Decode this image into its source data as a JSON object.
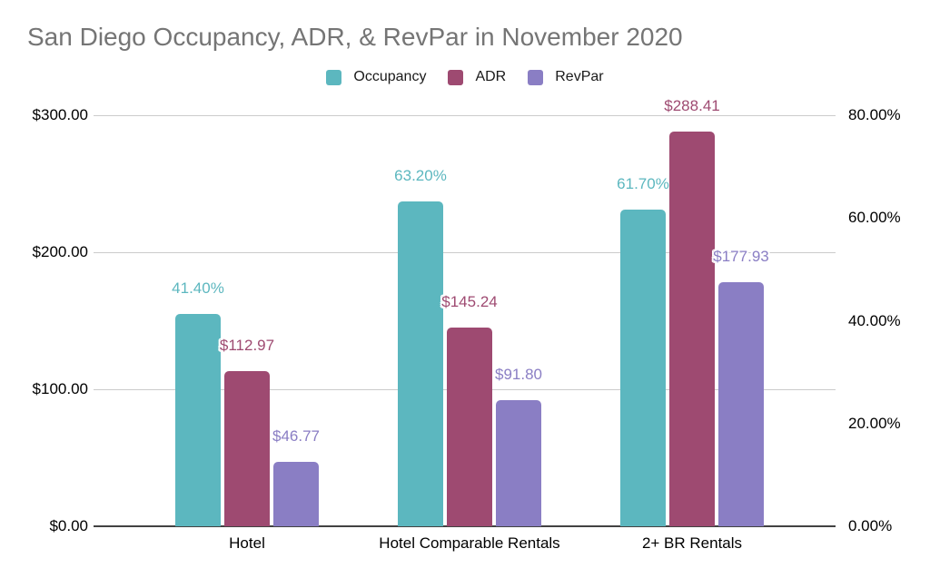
{
  "title": "San Diego Occupancy, ADR, & RevPar in November 2020",
  "colors": {
    "occupancy": "#5CB7BF",
    "adr": "#9E4A71",
    "revpar": "#8A7EC4",
    "title_text": "#757575",
    "axis_text": "#000000",
    "gridline": "#CBCBCB",
    "baseline": "#424242"
  },
  "legend": {
    "position": "top",
    "items": [
      {
        "label": "Occupancy",
        "color": "#5CB7BF"
      },
      {
        "label": "ADR",
        "color": "#9E4A71"
      },
      {
        "label": "RevPar",
        "color": "#8A7EC4"
      }
    ]
  },
  "chart_data": {
    "type": "bar",
    "title": "San Diego Occupancy, ADR, & RevPar in November 2020",
    "categories": [
      "Hotel",
      "Hotel Comparable Rentals",
      "2+ BR Rentals"
    ],
    "series": [
      {
        "name": "Occupancy",
        "axis": "right",
        "color": "#5CB7BF",
        "values": [
          41.4,
          63.2,
          61.7
        ],
        "data_labels": [
          "41.40%",
          "63.20%",
          "61.70%"
        ]
      },
      {
        "name": "ADR",
        "axis": "left",
        "color": "#9E4A71",
        "values": [
          112.97,
          145.24,
          288.41
        ],
        "data_labels": [
          "$112.97",
          "$145.24",
          "$288.41"
        ]
      },
      {
        "name": "RevPar",
        "axis": "left",
        "color": "#8A7EC4",
        "values": [
          46.77,
          91.8,
          177.93
        ],
        "data_labels": [
          "$46.77",
          "$91.80",
          "$177.93"
        ]
      }
    ],
    "left_axis": {
      "min": 0,
      "max": 300,
      "ticks": [
        {
          "label": "$0.00",
          "value": 0
        },
        {
          "label": "$100.00",
          "value": 100
        },
        {
          "label": "$200.00",
          "value": 200
        },
        {
          "label": "$300.00",
          "value": 300
        }
      ]
    },
    "right_axis": {
      "min": 0,
      "max": 80,
      "ticks": [
        {
          "label": "0.00%",
          "value": 0
        },
        {
          "label": "20.00%",
          "value": 20
        },
        {
          "label": "40.00%",
          "value": 40
        },
        {
          "label": "60.00%",
          "value": 60
        },
        {
          "label": "80.00%",
          "value": 80
        }
      ]
    },
    "grid": true,
    "legend_position": "top"
  }
}
